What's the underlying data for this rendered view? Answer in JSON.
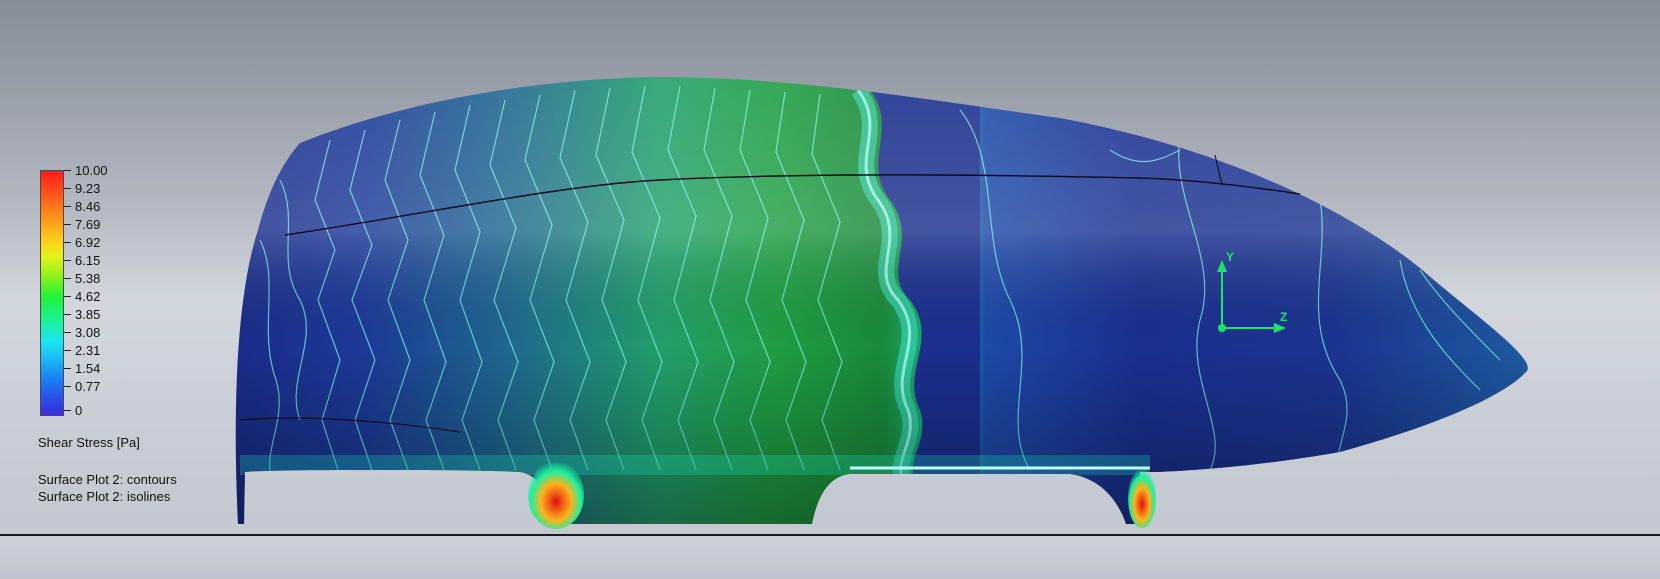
{
  "legend": {
    "title": "Shear Stress [Pa]",
    "ticks": [
      "10.00",
      "9.23",
      "8.46",
      "7.69",
      "6.92",
      "6.15",
      "5.38",
      "4.62",
      "3.85",
      "3.08",
      "2.31",
      "1.54",
      "0.77",
      "0"
    ],
    "colors": [
      "#ff1a1a",
      "#ff8c1a",
      "#ffcc1a",
      "#8ef21a",
      "#1ff23a",
      "#1ae6f2",
      "#1a7af2",
      "#3a30d8"
    ]
  },
  "plots": {
    "line1": "Surface Plot 2: contours",
    "line2": "Surface Plot 2: isolines"
  },
  "triad": {
    "y_label": "Y",
    "z_label": "Z"
  },
  "colors": {
    "body_dark_blue": "#1a2c8a",
    "body_green": "#1f8f3a",
    "isoline": "#7ff4ea",
    "hotspot": "#e01010"
  }
}
